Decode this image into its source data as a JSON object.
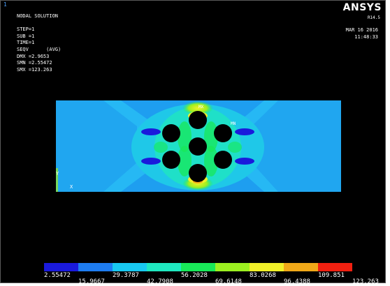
{
  "window": {
    "number": "1"
  },
  "header": {
    "lines": [
      "NODAL SOLUTION",
      "",
      "STEP=1",
      "SUB =1",
      "TIME=1",
      "SEQV      (AVG)",
      "DMX =2.9653",
      "SMN =2.55472",
      "SMX =123.263"
    ],
    "logo": "ANSYS",
    "version": "R14.5",
    "date": "MAR 16 2016",
    "time": "11:48:33"
  },
  "markers": {
    "mx": "MX",
    "mn": "MN",
    "y_axis": "Y",
    "x_axis": "X"
  },
  "colors": {
    "band1": "#1a1adc",
    "band2": "#1e7cf0",
    "band3": "#18c8f0",
    "band4": "#1fe8c0",
    "band5": "#18e858",
    "band6": "#9cf020",
    "band7": "#f0f028",
    "band8": "#f0a818",
    "band9": "#f02010"
  },
  "legend": {
    "labels": [
      "2.55472",
      "15.9667",
      "29.3787",
      "42.7908",
      "56.2028",
      "69.6148",
      "83.0268",
      "96.4388",
      "109.851",
      "123.263"
    ]
  }
}
